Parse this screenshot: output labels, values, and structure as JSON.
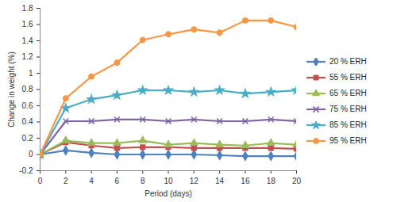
{
  "chart_data": {
    "type": "line",
    "x_label": "Period (days)",
    "y_label": "Change in weight (%)",
    "x": [
      0,
      2,
      4,
      6,
      8,
      10,
      12,
      14,
      16,
      18,
      20
    ],
    "series": [
      {
        "name": "20 % ERH",
        "color": "#4F81BD",
        "marker": "diamond",
        "values": [
          0,
          0.05,
          0.02,
          0,
          0,
          0,
          0,
          -0.01,
          -0.02,
          -0.02,
          -0.02
        ]
      },
      {
        "name": "55 % ERH",
        "color": "#C0504D",
        "marker": "square",
        "values": [
          0,
          0.15,
          0.11,
          0.08,
          0.09,
          0.09,
          0.08,
          0.08,
          0.08,
          0.08,
          0.07
        ]
      },
      {
        "name": "65 % ERH",
        "color": "#9BBB59",
        "marker": "triangle",
        "values": [
          0,
          0.17,
          0.14,
          0.14,
          0.17,
          0.12,
          0.14,
          0.12,
          0.11,
          0.14,
          0.12
        ]
      },
      {
        "name": "75 % ERH",
        "color": "#8064A2",
        "marker": "x",
        "values": [
          0,
          0.41,
          0.41,
          0.43,
          0.43,
          0.41,
          0.43,
          0.41,
          0.41,
          0.43,
          0.41
        ]
      },
      {
        "name": "85 % ERH",
        "color": "#4BACC6",
        "marker": "star",
        "values": [
          0,
          0.57,
          0.68,
          0.73,
          0.79,
          0.79,
          0.77,
          0.79,
          0.75,
          0.77,
          0.79
        ]
      },
      {
        "name": "95 % ERH",
        "color": "#F79646",
        "marker": "circle",
        "values": [
          0,
          0.69,
          0.96,
          1.13,
          1.41,
          1.48,
          1.54,
          1.5,
          1.65,
          1.65,
          1.57
        ]
      }
    ],
    "xlim": [
      0,
      20
    ],
    "xticks": [
      0,
      2,
      4,
      6,
      8,
      10,
      12,
      14,
      16,
      18,
      20
    ],
    "ylim": [
      -0.2,
      1.8
    ],
    "yticks": [
      -0.2,
      0,
      0.2,
      0.4,
      0.6,
      0.8,
      1,
      1.2,
      1.4,
      1.6,
      1.8
    ],
    "grid": false,
    "legend": "right"
  }
}
